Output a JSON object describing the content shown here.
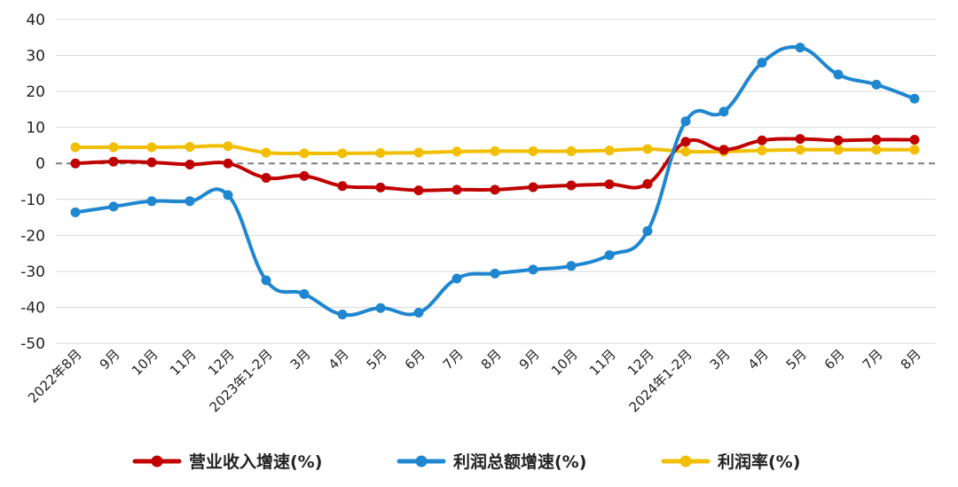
{
  "chart_data": {
    "type": "line",
    "categories": [
      "2022年8月",
      "9月",
      "10月",
      "11月",
      "12月",
      "2023年1-2月",
      "3月",
      "4月",
      "5月",
      "6月",
      "7月",
      "8月",
      "9月",
      "10月",
      "11月",
      "12月",
      "2024年1-2月",
      "3月",
      "4月",
      "5月",
      "6月",
      "7月",
      "8月"
    ],
    "series": [
      {
        "name": "营业收入增速(%)",
        "color": "#c00000",
        "values": [
          0,
          0.5,
          0.3,
          -0.3,
          0,
          -4,
          -3.5,
          -6.3,
          -6.7,
          -7.5,
          -7.3,
          -7.3,
          -6.6,
          -6.1,
          -5.8,
          -5.7,
          6,
          3.8,
          6.4,
          6.8,
          6.4,
          6.6,
          6.6
        ]
      },
      {
        "name": "利润总额增速(%)",
        "color": "#1f86d0",
        "values": [
          -13.6,
          -12,
          -10.5,
          -10.5,
          -8.8,
          -32.5,
          -36.3,
          -42,
          -40.2,
          -41.5,
          -32,
          -30.6,
          -29.5,
          -28.5,
          -25.5,
          -18.8,
          11.7,
          14.4,
          28,
          32.2,
          24.7,
          21.9,
          18
        ]
      },
      {
        "name": "利润率(%)",
        "color": "#f2bf00",
        "values": [
          4.5,
          4.5,
          4.5,
          4.6,
          4.8,
          3,
          2.8,
          2.8,
          2.9,
          3,
          3.3,
          3.4,
          3.4,
          3.4,
          3.6,
          4,
          3.3,
          3.3,
          3.6,
          3.8,
          3.8,
          3.8,
          3.8
        ]
      }
    ],
    "y_ticks": [
      40,
      30,
      20,
      10,
      0,
      -10,
      -20,
      -30,
      -40,
      -50
    ],
    "ylim": [
      -50,
      40
    ],
    "grid": true,
    "zero_line": "dashed",
    "legend_position": "bottom",
    "title": "",
    "xlabel": "",
    "ylabel": ""
  }
}
